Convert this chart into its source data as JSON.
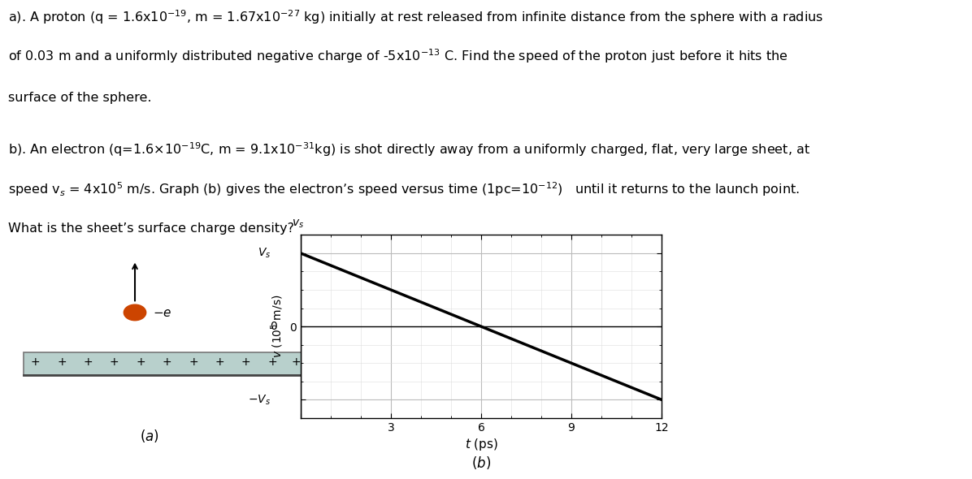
{
  "line_a1": "a). A proton (q = 1.6x10$^{-19}$, m = 1.67x10$^{-27}$ kg) initially at rest released from infinite distance from the sphere with a radius",
  "line_a2": "of 0.03 m and a uniformly distributed negative charge of -5x10$^{-13}$ C. Find the speed of the proton just before it hits the",
  "line_a3": "surface of the sphere.",
  "line_b1": "b). An electron (q=1.6$\\times$10$^{-19}$C, m = 9.1x10$^{-31}$kg) is shot directly away from a uniformly charged, flat, very large sheet, at",
  "line_b2": "speed v$_s$ = 4x10$^5$ m/s. Graph (b) gives the electron’s speed versus time (1pc=10$^{-12}$)   until it returns to the launch point.",
  "line_b3": "What is the sheet’s surface charge density?",
  "sheet_color": "#b8d0cc",
  "sheet_edge_color": "#777777",
  "electron_color": "#cc4400",
  "line_color": "#000000",
  "grid_major_color": "#bbbbbb",
  "grid_minor_color": "#dddddd",
  "font_size": 11.5
}
